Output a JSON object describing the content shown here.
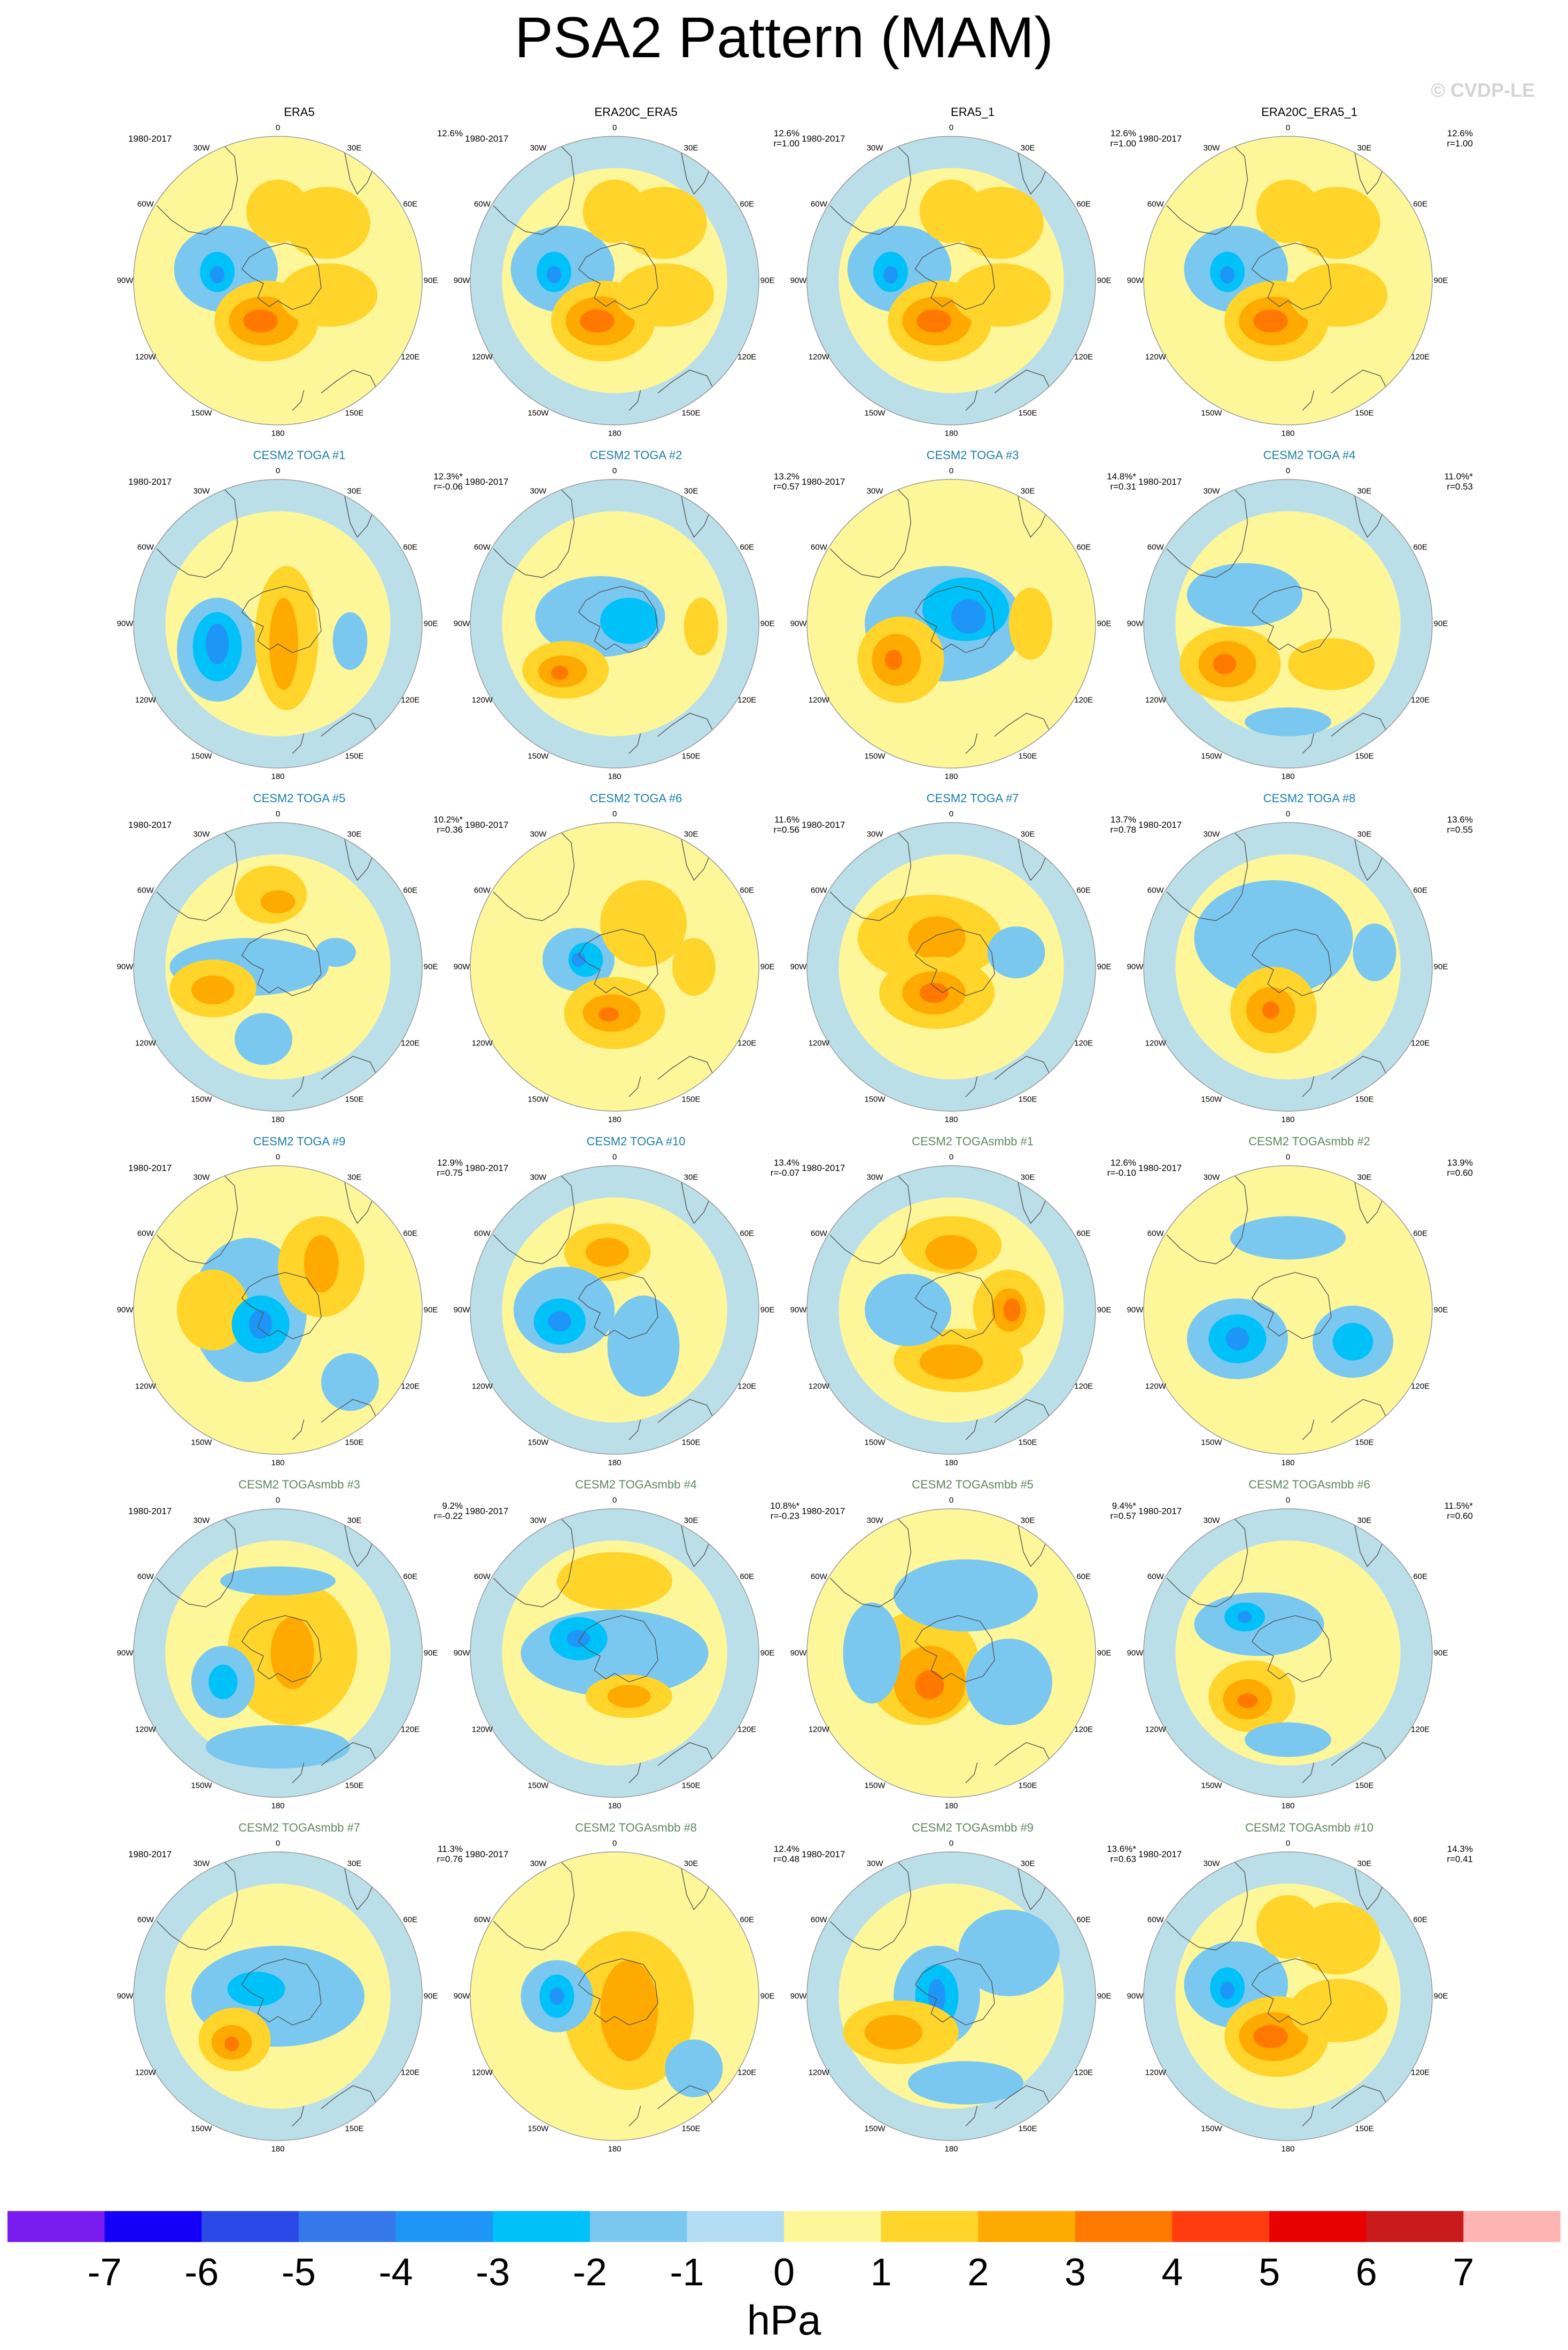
{
  "title": "PSA2 Pattern (MAM)",
  "watermark": "© CVDP-LE",
  "period_label": "1980-2017",
  "lon_labels": {
    "top": "0",
    "top_right": "30E",
    "upper_right": "60E",
    "right": "90E",
    "lower_right": "120E",
    "bottom_right": "150E",
    "bottom": "180",
    "bottom_left": "150W",
    "lower_left": "120W",
    "left": "90W",
    "upper_left": "60W",
    "top_left": "30W"
  },
  "colors": {
    "obs_title": "#000000",
    "toga_title": "#1a7fa6",
    "smbb_title": "#5c8a5c",
    "continents": "#555555",
    "ocean_neg1": "#b4dcf2",
    "pos1": "#fef79a"
  },
  "chart_data": {
    "type": "polar-contour-map",
    "units": "hPa",
    "colorbar": {
      "ticks": [
        "-7",
        "-6",
        "-5",
        "-4",
        "-3",
        "-2",
        "-1",
        "0",
        "1",
        "2",
        "3",
        "4",
        "5",
        "6",
        "7"
      ],
      "colors": [
        "#7a1cf0",
        "#1400f8",
        "#2a48e6",
        "#3478ec",
        "#1e96f7",
        "#00c1f8",
        "#7ac8f0",
        "#b4dcf2",
        "#fef79a",
        "#ffd52c",
        "#ffaa00",
        "#ff7800",
        "#ff3c10",
        "#e80000",
        "#c81a1a",
        "#ffb4b4"
      ]
    },
    "panels": [
      {
        "title": "ERA5",
        "group": "obs",
        "pct": "12.6%",
        "r": ""
      },
      {
        "title": "ERA20C_ERA5",
        "group": "obs",
        "pct": "12.6%",
        "r": "r=1.00"
      },
      {
        "title": "ERA5_1",
        "group": "obs",
        "pct": "12.6%",
        "r": "r=1.00"
      },
      {
        "title": "ERA20C_ERA5_1",
        "group": "obs",
        "pct": "12.6%",
        "r": "r=1.00"
      },
      {
        "title": "CESM2 TOGA #1",
        "group": "toga",
        "pct": "12.3%*",
        "r": "r=-0.06"
      },
      {
        "title": "CESM2 TOGA #2",
        "group": "toga",
        "pct": "13.2%",
        "r": "r=0.57"
      },
      {
        "title": "CESM2 TOGA #3",
        "group": "toga",
        "pct": "14.8%*",
        "r": "r=0.31"
      },
      {
        "title": "CESM2 TOGA #4",
        "group": "toga",
        "pct": "11.0%*",
        "r": "r=0.53"
      },
      {
        "title": "CESM2 TOGA #5",
        "group": "toga",
        "pct": "10.2%*",
        "r": "r=0.36"
      },
      {
        "title": "CESM2 TOGA #6",
        "group": "toga",
        "pct": "11.6%",
        "r": "r=0.56"
      },
      {
        "title": "CESM2 TOGA #7",
        "group": "toga",
        "pct": "13.7%",
        "r": "r=0.78"
      },
      {
        "title": "CESM2 TOGA #8",
        "group": "toga",
        "pct": "13.6%",
        "r": "r=0.55"
      },
      {
        "title": "CESM2 TOGA #9",
        "group": "toga",
        "pct": "12.9%",
        "r": "r=0.75"
      },
      {
        "title": "CESM2 TOGA #10",
        "group": "toga",
        "pct": "13.4%",
        "r": "r=-0.07"
      },
      {
        "title": "CESM2 TOGAsmbb #1",
        "group": "smbb",
        "pct": "12.6%",
        "r": "r=-0.10"
      },
      {
        "title": "CESM2 TOGAsmbb #2",
        "group": "smbb",
        "pct": "13.9%",
        "r": "r=0.60"
      },
      {
        "title": "CESM2 TOGAsmbb #3",
        "group": "smbb",
        "pct": "9.2%",
        "r": "r=-0.22"
      },
      {
        "title": "CESM2 TOGAsmbb #4",
        "group": "smbb",
        "pct": "10.8%*",
        "r": "r=-0.23"
      },
      {
        "title": "CESM2 TOGAsmbb #5",
        "group": "smbb",
        "pct": "9.4%*",
        "r": "r=0.57"
      },
      {
        "title": "CESM2 TOGAsmbb #6",
        "group": "smbb",
        "pct": "11.5%*",
        "r": "r=0.60"
      },
      {
        "title": "CESM2 TOGAsmbb #7",
        "group": "smbb",
        "pct": "11.3%",
        "r": "r=0.76"
      },
      {
        "title": "CESM2 TOGAsmbb #8",
        "group": "smbb",
        "pct": "12.4%",
        "r": "r=0.48"
      },
      {
        "title": "CESM2 TOGAsmbb #9",
        "group": "smbb",
        "pct": "13.6%*",
        "r": "r=0.63"
      },
      {
        "title": "CESM2 TOGAsmbb #10",
        "group": "smbb",
        "pct": "14.3%",
        "r": "r=0.41"
      }
    ]
  }
}
